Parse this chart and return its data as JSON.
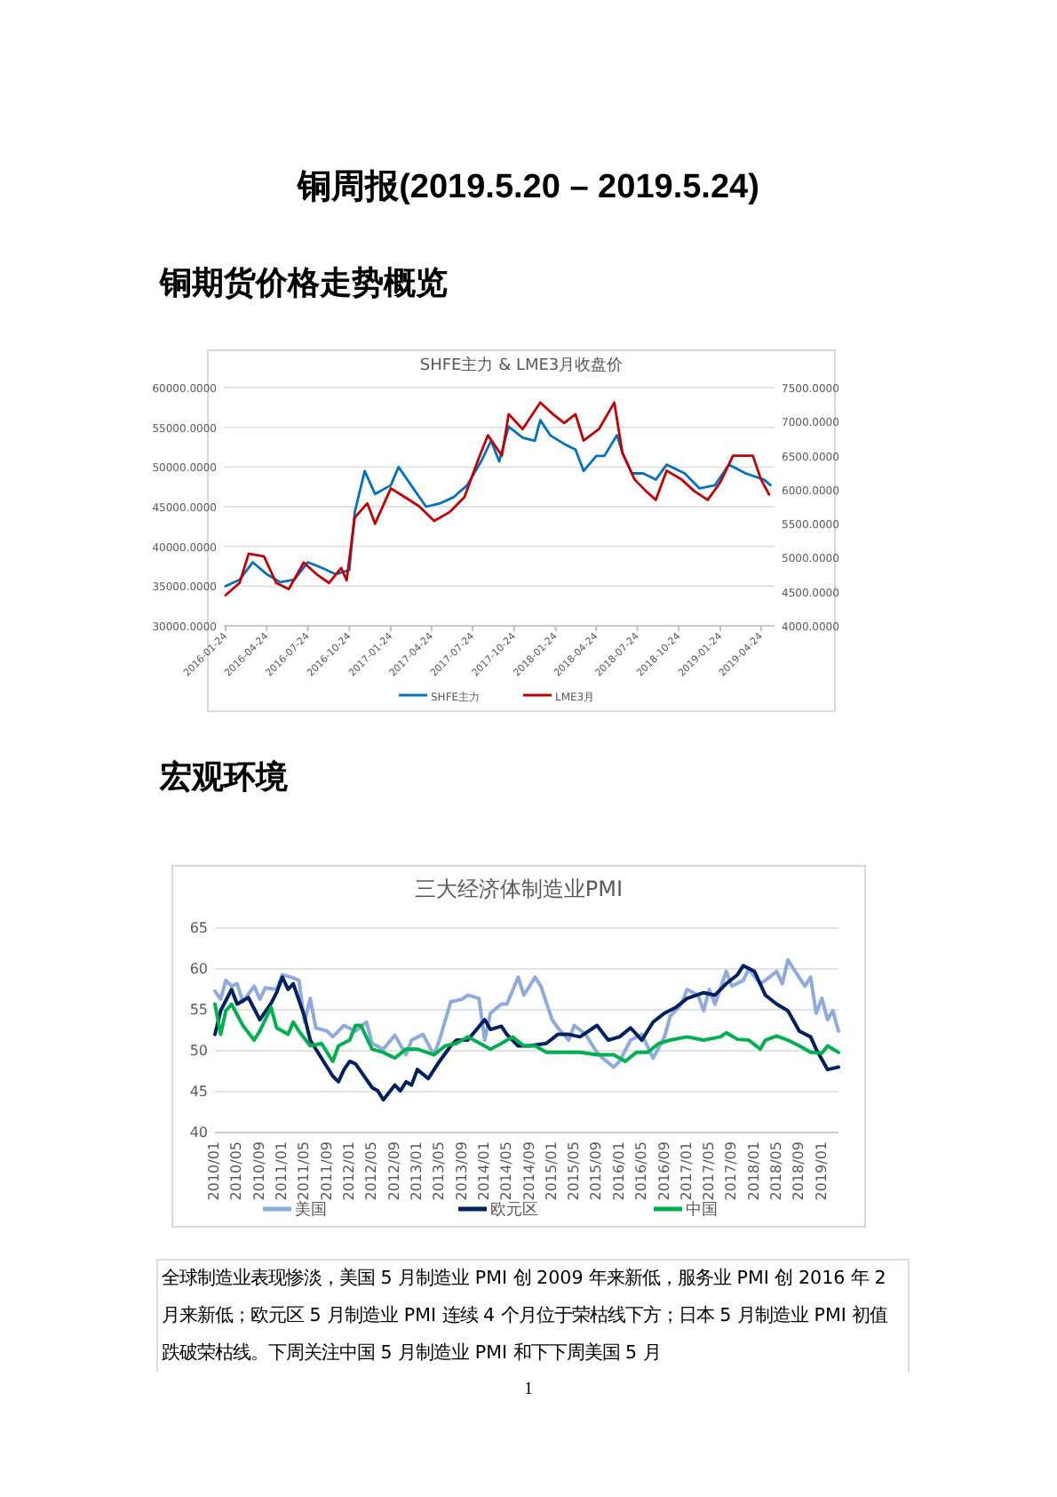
{
  "chart_data": [
    {
      "type": "line",
      "title": "SHFE主力 & LME3月收盘价",
      "annotations": [
        "铜周报(2019.5.20 – 2019.5.24)",
        "铜期货价格走势概览"
      ],
      "xlim": [
        "2016-01-20",
        "2019-05-24"
      ],
      "xticks": [
        "2016-01-24",
        "2016-04-24",
        "2016-07-24",
        "2016-10-24",
        "2017-01-24",
        "2017-04-24",
        "2017-07-24",
        "2017-10-24",
        "2018-01-24",
        "2018-04-24",
        "2018-07-24",
        "2018-10-24",
        "2019-01-24",
        "2019-04-24"
      ],
      "ylim": [
        30000,
        60000
      ],
      "yticks": [
        {
          "value": 30000,
          "label": "30000.0000"
        },
        {
          "value": 35000,
          "label": "35000.0000"
        },
        {
          "value": 40000,
          "label": "40000.0000"
        },
        {
          "value": 45000,
          "label": "45000.0000"
        },
        {
          "value": 50000,
          "label": "50000.0000"
        },
        {
          "value": 55000,
          "label": "55000.0000"
        },
        {
          "value": 60000,
          "label": "60000.0000"
        }
      ],
      "y2lim": [
        4000,
        7500
      ],
      "y2ticks": [
        {
          "value": 4000,
          "label": "4000.0000"
        },
        {
          "value": 4500,
          "label": "4500.0000"
        },
        {
          "value": 5000,
          "label": "5000.0000"
        },
        {
          "value": 5500,
          "label": "5500.0000"
        },
        {
          "value": 6000,
          "label": "6000.0000"
        },
        {
          "value": 6500,
          "label": "6500.0000"
        },
        {
          "value": 7000,
          "label": "7000.0000"
        },
        {
          "value": 7500,
          "label": "7500.0000"
        }
      ],
      "grid": "y",
      "legend": "bottom",
      "series": [
        {
          "name": "SHFE主力",
          "color": "#0070c0",
          "x": [
            "2016-01-24",
            "2016-02-24",
            "2016-03-24",
            "2016-04-24",
            "2016-05-24",
            "2016-06-24",
            "2016-07-24",
            "2016-08-24",
            "2016-09-24",
            "2016-10-24",
            "2016-11-05",
            "2016-11-27",
            "2016-12-20",
            "2017-01-24",
            "2017-02-10",
            "2017-03-10",
            "2017-04-12",
            "2017-05-12",
            "2017-06-12",
            "2017-07-12",
            "2017-08-12",
            "2017-09-03",
            "2017-09-21",
            "2017-10-12",
            "2017-11-12",
            "2017-12-09",
            "2017-12-21",
            "2018-01-12",
            "2018-02-12",
            "2018-03-09",
            "2018-03-27",
            "2018-04-24",
            "2018-05-12",
            "2018-06-09",
            "2018-06-21",
            "2018-07-12",
            "2018-08-06",
            "2018-09-03",
            "2018-09-27",
            "2018-11-06",
            "2018-12-09",
            "2019-01-12",
            "2019-02-12",
            "2019-03-21",
            "2019-05-01",
            "2019-05-15"
          ],
          "values": [
            35000,
            35800,
            38000,
            36500,
            35500,
            35800,
            38000,
            37300,
            36500,
            37000,
            44300,
            49500,
            46600,
            47700,
            50000,
            47700,
            45000,
            45400,
            46200,
            47700,
            50700,
            53300,
            50700,
            55100,
            53700,
            53300,
            55900,
            54000,
            52900,
            52200,
            49500,
            51400,
            51400,
            54000,
            51800,
            49200,
            49200,
            48400,
            50300,
            49200,
            47300,
            47700,
            50300,
            49200,
            48400,
            47700
          ]
        },
        {
          "name": "LME3月",
          "color": "#c00000",
          "axis": "y2",
          "x": [
            "2016-01-24",
            "2016-02-24",
            "2016-03-15",
            "2016-04-18",
            "2016-05-15",
            "2016-06-12",
            "2016-07-15",
            "2016-08-12",
            "2016-09-09",
            "2016-10-06",
            "2016-10-18",
            "2016-11-05",
            "2016-12-03",
            "2016-12-20",
            "2017-01-24",
            "2017-02-24",
            "2017-03-27",
            "2017-04-30",
            "2017-06-03",
            "2017-07-06",
            "2017-08-06",
            "2017-08-27",
            "2017-09-27",
            "2017-10-12",
            "2017-11-12",
            "2017-12-21",
            "2018-01-18",
            "2018-02-12",
            "2018-03-09",
            "2018-03-27",
            "2018-04-30",
            "2018-06-03",
            "2018-06-21",
            "2018-07-18",
            "2018-08-12",
            "2018-09-03",
            "2018-09-27",
            "2018-10-30",
            "2018-11-27",
            "2018-12-27",
            "2019-01-24",
            "2019-02-21",
            "2019-04-06",
            "2019-04-24",
            "2019-05-12"
          ],
          "values": [
            4450,
            4630,
            5060,
            5020,
            4630,
            4540,
            4930,
            4760,
            4630,
            4850,
            4670,
            5590,
            5800,
            5500,
            6020,
            5890,
            5760,
            5540,
            5670,
            5890,
            6450,
            6800,
            6500,
            7110,
            6890,
            7280,
            7110,
            6980,
            7110,
            6720,
            6890,
            7280,
            6540,
            6150,
            5980,
            5850,
            6280,
            6150,
            5980,
            5850,
            6110,
            6500,
            6500,
            6150,
            5930
          ]
        }
      ]
    },
    {
      "type": "line",
      "title": "三大经济体制造业PMI",
      "annotations": [
        "宏观环境",
        "全球制造业表现惨淡，美国 5 月制造业 PMI 创 2009 年来新低，服务业 PMI 创 2016 年 2 月来新低；欧元区 5 月制造业 PMI 连续 4 个月位于荣枯线下方；日本 5 月制造业 PMI 初值跌破荣枯线。下周关注中国 5 月制造业 PMI 和下下周美国 5 月",
        "1"
      ],
      "xlim": [
        "2010-01",
        "2019-04"
      ],
      "xticks": [
        {
          "value": "2010-01",
          "label": "2010/01"
        },
        {
          "value": "2010-05",
          "label": "2010/05"
        },
        {
          "value": "2010-09",
          "label": "2010/09"
        },
        {
          "value": "2011-01",
          "label": "2011/01"
        },
        {
          "value": "2011-05",
          "label": "2011/05"
        },
        {
          "value": "2011-09",
          "label": "2011/09"
        },
        {
          "value": "2012-01",
          "label": "2012/01"
        },
        {
          "value": "2012-05",
          "label": "2012/05"
        },
        {
          "value": "2012-09",
          "label": "2012/09"
        },
        {
          "value": "2013-01",
          "label": "2013/01"
        },
        {
          "value": "2013-05",
          "label": "2013/05"
        },
        {
          "value": "2013-09",
          "label": "2013/09"
        },
        {
          "value": "2014-01",
          "label": "2014/01"
        },
        {
          "value": "2014-05",
          "label": "2014/05"
        },
        {
          "value": "2014-09",
          "label": "2014/09"
        },
        {
          "value": "2015-01",
          "label": "2015/01"
        },
        {
          "value": "2015-05",
          "label": "2015/05"
        },
        {
          "value": "2015-09",
          "label": "2015/09"
        },
        {
          "value": "2016-01",
          "label": "2016/01"
        },
        {
          "value": "2016-05",
          "label": "2016/05"
        },
        {
          "value": "2016-09",
          "label": "2016/09"
        },
        {
          "value": "2017-01",
          "label": "2017/01"
        },
        {
          "value": "2017-05",
          "label": "2017/05"
        },
        {
          "value": "2017-09",
          "label": "2017/09"
        },
        {
          "value": "2018-01",
          "label": "2018/01"
        },
        {
          "value": "2018-05",
          "label": "2018/05"
        },
        {
          "value": "2018-09",
          "label": "2018/09"
        },
        {
          "value": "2019-01",
          "label": "2019/01"
        }
      ],
      "ylim": [
        40,
        65
      ],
      "yticks": [
        40,
        45,
        50,
        55,
        60,
        65
      ],
      "grid": "y",
      "legend": "bottom",
      "series": [
        {
          "name": "美国",
          "color": "#8faadc",
          "x": [
            "2010-01",
            "2010-02",
            "2010-03",
            "2010-04",
            "2010-05",
            "2010-06",
            "2010-08",
            "2010-09",
            "2010-10",
            "2010-12",
            "2011-01",
            "2011-03",
            "2011-04",
            "2011-05",
            "2011-06",
            "2011-07",
            "2011-09",
            "2011-10",
            "2011-12",
            "2012-02",
            "2012-04",
            "2012-05",
            "2012-07",
            "2012-09",
            "2012-11",
            "2012-12",
            "2013-02",
            "2013-04",
            "2013-05",
            "2013-07",
            "2013-09",
            "2013-10",
            "2013-12",
            "2014-01",
            "2014-02",
            "2014-04",
            "2014-05",
            "2014-07",
            "2014-08",
            "2014-10",
            "2014-11",
            "2015-01",
            "2015-02",
            "2015-04",
            "2015-05",
            "2015-07",
            "2015-09",
            "2015-10",
            "2015-12",
            "2016-01",
            "2016-03",
            "2016-05",
            "2016-07",
            "2016-09",
            "2016-10",
            "2016-12",
            "2017-01",
            "2017-03",
            "2017-04",
            "2017-05",
            "2017-06",
            "2017-08",
            "2017-09",
            "2017-11",
            "2017-12",
            "2018-02",
            "2018-03",
            "2018-05",
            "2018-06",
            "2018-07",
            "2018-08",
            "2018-10",
            "2018-11",
            "2018-12",
            "2019-01",
            "2019-02",
            "2019-03",
            "2019-04"
          ],
          "values": [
            57.3,
            56.3,
            58.6,
            57.9,
            58.2,
            56,
            57.9,
            56.3,
            57.7,
            57.5,
            59.3,
            58.9,
            58.6,
            53.5,
            56.4,
            52.8,
            52.4,
            51.7,
            53.1,
            52.4,
            53.5,
            50.9,
            50.2,
            51.9,
            49.5,
            51.3,
            52,
            49.5,
            51.3,
            56,
            56.3,
            56.8,
            56.4,
            51.3,
            54.6,
            55.7,
            55.7,
            59,
            56.8,
            59,
            57.9,
            53.8,
            52.8,
            51.3,
            53.1,
            52,
            49.8,
            49.1,
            48,
            48.7,
            51.3,
            52,
            49.1,
            51.7,
            54.2,
            55.7,
            57.5,
            56.8,
            54.9,
            57.5,
            55.7,
            59.7,
            57.9,
            58.6,
            60,
            58.2,
            58.6,
            59.7,
            58.2,
            61.1,
            60,
            57.9,
            59,
            54.6,
            56.4,
            53.8,
            54.9,
            52.4
          ]
        },
        {
          "name": "欧元区",
          "color": "#002060",
          "x": [
            "2010-01",
            "2010-02",
            "2010-04",
            "2010-05",
            "2010-07",
            "2010-09",
            "2010-11",
            "2010-12",
            "2011-01",
            "2011-02",
            "2011-03",
            "2011-05",
            "2011-06",
            "2011-08",
            "2011-10",
            "2011-11",
            "2011-12",
            "2012-01",
            "2012-02",
            "2012-05",
            "2012-06",
            "2012-07",
            "2012-09",
            "2012-10",
            "2012-11",
            "2012-12",
            "2013-01",
            "2013-03",
            "2013-05",
            "2013-07",
            "2013-08",
            "2013-10",
            "2014-01",
            "2014-02",
            "2014-04",
            "2014-05",
            "2014-07",
            "2014-09",
            "2014-12",
            "2015-02",
            "2015-04",
            "2015-06",
            "2015-09",
            "2015-11",
            "2016-01",
            "2016-03",
            "2016-05",
            "2016-07",
            "2016-09",
            "2016-11",
            "2017-01",
            "2017-04",
            "2017-06",
            "2017-08",
            "2017-10",
            "2017-11",
            "2018-01",
            "2018-03",
            "2018-05",
            "2018-07",
            "2018-09",
            "2018-11",
            "2018-12",
            "2019-02",
            "2019-04"
          ],
          "values": [
            52,
            54.9,
            57.5,
            55.7,
            56.5,
            53.8,
            55.8,
            57.1,
            59,
            57.5,
            58.2,
            54.2,
            51.3,
            49.1,
            46.9,
            46.2,
            47.7,
            48.7,
            48.4,
            45.5,
            45.1,
            44,
            45.8,
            45.1,
            46.2,
            45.8,
            47.7,
            46.6,
            48.7,
            50.6,
            51.3,
            51.3,
            53.8,
            52.6,
            53,
            52,
            50.6,
            50.6,
            50.9,
            52,
            52,
            51.7,
            53.1,
            51.3,
            51.7,
            52.8,
            51.3,
            53.5,
            54.6,
            55.3,
            56.4,
            57.1,
            56.8,
            58.2,
            59.3,
            60.4,
            59.7,
            56.8,
            55.7,
            54.9,
            52.4,
            51.7,
            50.2,
            47.7,
            48
          ]
        },
        {
          "name": "中国",
          "color": "#00b050",
          "x": [
            "2010-01",
            "2010-02",
            "2010-03",
            "2010-04",
            "2010-06",
            "2010-08",
            "2010-09",
            "2010-11",
            "2010-12",
            "2011-02",
            "2011-03",
            "2011-04",
            "2011-06",
            "2011-08",
            "2011-10",
            "2011-11",
            "2012-01",
            "2012-02",
            "2012-03",
            "2012-05",
            "2012-07",
            "2012-09",
            "2012-11",
            "2013-01",
            "2013-04",
            "2013-06",
            "2013-08",
            "2013-10",
            "2014-02",
            "2014-04",
            "2014-06",
            "2014-08",
            "2014-10",
            "2014-12",
            "2015-03",
            "2015-06",
            "2015-09",
            "2015-12",
            "2016-02",
            "2016-04",
            "2016-06",
            "2016-08",
            "2016-10",
            "2017-01",
            "2017-04",
            "2017-07",
            "2017-08",
            "2017-10",
            "2017-12",
            "2018-02",
            "2018-03",
            "2018-05",
            "2018-07",
            "2018-09",
            "2018-11",
            "2019-01",
            "2019-02",
            "2019-04"
          ],
          "values": [
            55.7,
            52,
            54.9,
            55.7,
            53.1,
            51.3,
            52.4,
            55.3,
            52.8,
            52,
            53.5,
            52.4,
            50.6,
            50.9,
            48.7,
            50.6,
            51.3,
            53.1,
            53.1,
            50.2,
            49.8,
            49.1,
            50.2,
            50.2,
            49.5,
            50.6,
            50.9,
            51.7,
            50.2,
            50.9,
            51.7,
            50.6,
            50.6,
            49.8,
            49.8,
            49.8,
            49.5,
            49.5,
            48.7,
            49.8,
            49.8,
            50.9,
            51.3,
            51.7,
            51.3,
            51.7,
            52.2,
            51.4,
            51.3,
            50.2,
            51.3,
            51.8,
            51.3,
            50.6,
            49.8,
            49.7,
            50.6,
            49.8
          ]
        }
      ]
    }
  ]
}
